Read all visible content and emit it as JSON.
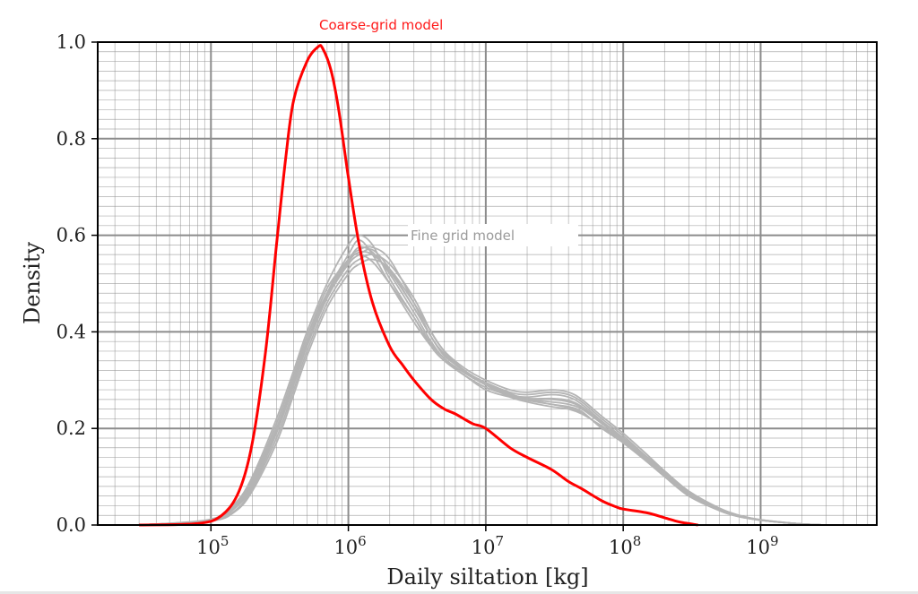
{
  "chart_data": {
    "type": "line",
    "xlabel": "Daily siltation [kg]",
    "ylabel": "Density",
    "xscale": "log",
    "xlim": [
      15000,
      7000000000
    ],
    "ylim": [
      0,
      1.0
    ],
    "grid": true,
    "x_ticks": [
      {
        "exp": "5",
        "value": 100000
      },
      {
        "exp": "6",
        "value": 1000000
      },
      {
        "exp": "7",
        "value": 10000000
      },
      {
        "exp": "8",
        "value": 100000000
      },
      {
        "exp": "9",
        "value": 1000000000
      }
    ],
    "x_tick_base": "10",
    "y_ticks": [
      "0.0",
      "0.2",
      "0.4",
      "0.6",
      "0.8",
      "1.0"
    ],
    "annotations": {
      "coarse": {
        "text": "Coarse-grid model",
        "color": "#ff1a1a"
      },
      "fine": {
        "text": "Fine grid model",
        "color": "#9a9a9a"
      }
    },
    "colors": {
      "coarse": "#ff0000",
      "fine": "#b4b4b4",
      "axis": "#000000",
      "grid": "#8c8c8c"
    },
    "coarse_series": {
      "x": [
        30000,
        80000,
        120000,
        160000,
        200000,
        250000,
        300000,
        350000,
        400000,
        500000,
        600000,
        650000,
        750000,
        850000,
        1000000,
        1200000,
        1500000,
        2000000,
        2500000,
        3000000,
        4000000,
        5000000,
        6000000,
        8000000,
        10000000,
        15000000,
        20000000,
        30000000,
        40000000,
        50000000,
        70000000,
        90000000,
        100000000,
        150000000,
        200000000,
        250000000,
        300000000,
        350000000
      ],
      "y": [
        0.0,
        0.003,
        0.02,
        0.07,
        0.17,
        0.36,
        0.58,
        0.76,
        0.88,
        0.96,
        0.99,
        0.987,
        0.94,
        0.86,
        0.72,
        0.58,
        0.46,
        0.37,
        0.33,
        0.3,
        0.26,
        0.24,
        0.23,
        0.21,
        0.2,
        0.16,
        0.14,
        0.115,
        0.09,
        0.075,
        0.05,
        0.037,
        0.033,
        0.025,
        0.015,
        0.007,
        0.003,
        0.0
      ]
    },
    "fine_x": [
      30000,
      100000,
      150000,
      200000,
      300000,
      400000,
      500000,
      700000,
      1000000,
      1200000,
      1500000,
      2000000,
      3000000,
      4000000,
      5000000,
      7000000,
      10000000,
      15000000,
      20000000,
      30000000,
      40000000,
      50000000,
      70000000,
      100000000,
      150000000,
      200000000,
      300000000,
      500000000,
      700000000,
      1000000000,
      2000000000,
      3000000000
    ],
    "fine_series": [
      {
        "y": [
          0.0,
          0.01,
          0.04,
          0.09,
          0.2,
          0.3,
          0.38,
          0.48,
          0.56,
          0.59,
          0.56,
          0.5,
          0.42,
          0.37,
          0.34,
          0.31,
          0.28,
          0.265,
          0.26,
          0.255,
          0.25,
          0.24,
          0.21,
          0.18,
          0.14,
          0.11,
          0.07,
          0.035,
          0.02,
          0.01,
          0.002,
          0.0
        ]
      },
      {
        "y": [
          0.0,
          0.01,
          0.035,
          0.08,
          0.19,
          0.29,
          0.37,
          0.47,
          0.54,
          0.56,
          0.57,
          0.53,
          0.45,
          0.39,
          0.35,
          0.32,
          0.29,
          0.27,
          0.265,
          0.27,
          0.265,
          0.25,
          0.215,
          0.18,
          0.135,
          0.105,
          0.065,
          0.03,
          0.018,
          0.01,
          0.002,
          0.0
        ]
      },
      {
        "y": [
          0.0,
          0.012,
          0.045,
          0.1,
          0.22,
          0.32,
          0.4,
          0.5,
          0.58,
          0.6,
          0.58,
          0.51,
          0.43,
          0.37,
          0.34,
          0.31,
          0.285,
          0.27,
          0.26,
          0.25,
          0.245,
          0.235,
          0.2,
          0.17,
          0.13,
          0.1,
          0.06,
          0.03,
          0.017,
          0.01,
          0.002,
          0.0
        ]
      },
      {
        "y": [
          0.0,
          0.009,
          0.03,
          0.075,
          0.18,
          0.28,
          0.36,
          0.46,
          0.53,
          0.55,
          0.56,
          0.54,
          0.47,
          0.4,
          0.36,
          0.32,
          0.295,
          0.275,
          0.27,
          0.275,
          0.27,
          0.255,
          0.22,
          0.185,
          0.14,
          0.11,
          0.068,
          0.032,
          0.019,
          0.011,
          0.002,
          0.0
        ]
      },
      {
        "y": [
          0.0,
          0.011,
          0.04,
          0.09,
          0.21,
          0.31,
          0.39,
          0.49,
          0.55,
          0.575,
          0.565,
          0.52,
          0.44,
          0.38,
          0.345,
          0.315,
          0.29,
          0.265,
          0.255,
          0.245,
          0.24,
          0.23,
          0.205,
          0.175,
          0.135,
          0.105,
          0.065,
          0.032,
          0.018,
          0.01,
          0.002,
          0.0
        ]
      },
      {
        "y": [
          0.0,
          0.01,
          0.038,
          0.085,
          0.2,
          0.3,
          0.38,
          0.47,
          0.55,
          0.57,
          0.575,
          0.55,
          0.46,
          0.39,
          0.355,
          0.32,
          0.292,
          0.272,
          0.262,
          0.262,
          0.258,
          0.245,
          0.212,
          0.18,
          0.138,
          0.108,
          0.066,
          0.031,
          0.018,
          0.01,
          0.002,
          0.0
        ]
      },
      {
        "y": [
          0.0,
          0.008,
          0.028,
          0.07,
          0.17,
          0.27,
          0.35,
          0.45,
          0.52,
          0.54,
          0.55,
          0.53,
          0.46,
          0.4,
          0.36,
          0.325,
          0.3,
          0.28,
          0.275,
          0.28,
          0.275,
          0.26,
          0.225,
          0.19,
          0.145,
          0.112,
          0.07,
          0.033,
          0.02,
          0.011,
          0.002,
          0.0
        ]
      },
      {
        "y": [
          0.0,
          0.011,
          0.042,
          0.095,
          0.21,
          0.31,
          0.39,
          0.48,
          0.55,
          0.56,
          0.545,
          0.5,
          0.43,
          0.375,
          0.345,
          0.31,
          0.285,
          0.268,
          0.258,
          0.25,
          0.243,
          0.232,
          0.203,
          0.172,
          0.132,
          0.102,
          0.062,
          0.03,
          0.017,
          0.01,
          0.002,
          0.0
        ]
      },
      {
        "y": [
          0.0,
          0.01,
          0.036,
          0.082,
          0.195,
          0.295,
          0.375,
          0.475,
          0.545,
          0.565,
          0.56,
          0.525,
          0.45,
          0.39,
          0.352,
          0.318,
          0.292,
          0.27,
          0.262,
          0.26,
          0.255,
          0.243,
          0.21,
          0.178,
          0.136,
          0.106,
          0.066,
          0.031,
          0.018,
          0.01,
          0.002,
          0.0
        ]
      }
    ]
  }
}
